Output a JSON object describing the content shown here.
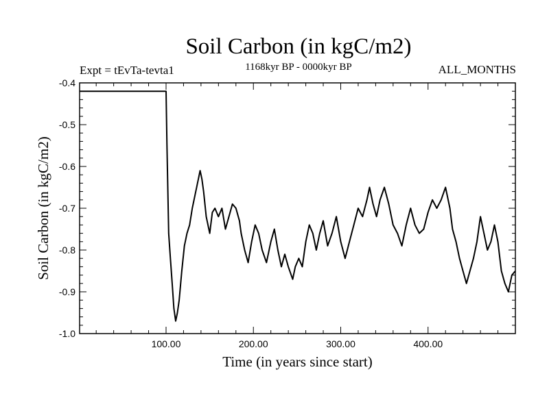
{
  "header": {
    "title": "Soil Carbon (in kgC/m2)",
    "experiment": "Expt = tEvTa-tevta1",
    "period": "1168kyr BP - 0000kyr BP",
    "months": "ALL_MONTHS"
  },
  "chart_data": {
    "type": "line",
    "title": "Soil Carbon (in kgC/m2)",
    "xlabel": "Time (in years since start)",
    "ylabel": "Soil Carbon (in kgC/m2)",
    "xlim": [
      1,
      500
    ],
    "ylim": [
      -1.0,
      -0.4
    ],
    "x_ticks": [
      100,
      200,
      300,
      400
    ],
    "x_tick_labels": [
      "100.00",
      "200.00",
      "300.00",
      "400.00"
    ],
    "y_ticks": [
      -1.0,
      -0.9,
      -0.8,
      -0.7,
      -0.6,
      -0.5,
      -0.4
    ],
    "y_tick_labels": [
      "-1.0",
      "-0.9",
      "-0.8",
      "-0.7",
      "-0.6",
      "-0.5",
      "-0.4"
    ],
    "grid": false,
    "series": [
      {
        "name": "Soil Carbon",
        "color": "#000000",
        "x": [
          1,
          99,
          100,
          101,
          103,
          105,
          107,
          109,
          111,
          113,
          115,
          118,
          121,
          124,
          127,
          130,
          133,
          136,
          139,
          141,
          143,
          146,
          150,
          153,
          156,
          160,
          164,
          168,
          172,
          176,
          180,
          184,
          186,
          190,
          194,
          198,
          202,
          206,
          210,
          215,
          220,
          224,
          228,
          232,
          236,
          240,
          245,
          248,
          252,
          256,
          260,
          264,
          268,
          272,
          276,
          280,
          285,
          290,
          295,
          300,
          305,
          310,
          315,
          320,
          325,
          330,
          333,
          337,
          341,
          345,
          350,
          355,
          360,
          365,
          370,
          375,
          380,
          385,
          390,
          395,
          400,
          405,
          410,
          415,
          420,
          425,
          428,
          432,
          436,
          440,
          444,
          448,
          452,
          456,
          460,
          464,
          468,
          472,
          476,
          480,
          484,
          488,
          492,
          496,
          500
        ],
        "y": [
          -0.42,
          -0.42,
          -0.42,
          -0.55,
          -0.76,
          -0.82,
          -0.88,
          -0.94,
          -0.97,
          -0.95,
          -0.92,
          -0.85,
          -0.79,
          -0.76,
          -0.74,
          -0.7,
          -0.67,
          -0.64,
          -0.61,
          -0.63,
          -0.66,
          -0.72,
          -0.76,
          -0.71,
          -0.7,
          -0.72,
          -0.7,
          -0.75,
          -0.72,
          -0.69,
          -0.7,
          -0.73,
          -0.76,
          -0.8,
          -0.83,
          -0.78,
          -0.74,
          -0.76,
          -0.8,
          -0.83,
          -0.78,
          -0.75,
          -0.8,
          -0.84,
          -0.81,
          -0.84,
          -0.87,
          -0.84,
          -0.82,
          -0.84,
          -0.78,
          -0.74,
          -0.76,
          -0.8,
          -0.76,
          -0.73,
          -0.79,
          -0.76,
          -0.72,
          -0.78,
          -0.82,
          -0.78,
          -0.74,
          -0.7,
          -0.72,
          -0.68,
          -0.65,
          -0.69,
          -0.72,
          -0.68,
          -0.65,
          -0.69,
          -0.74,
          -0.76,
          -0.79,
          -0.74,
          -0.7,
          -0.74,
          -0.76,
          -0.75,
          -0.71,
          -0.68,
          -0.7,
          -0.68,
          -0.65,
          -0.7,
          -0.75,
          -0.78,
          -0.82,
          -0.85,
          -0.88,
          -0.85,
          -0.82,
          -0.78,
          -0.72,
          -0.76,
          -0.8,
          -0.78,
          -0.74,
          -0.78,
          -0.85,
          -0.88,
          -0.9,
          -0.86,
          -0.85
        ]
      }
    ]
  }
}
